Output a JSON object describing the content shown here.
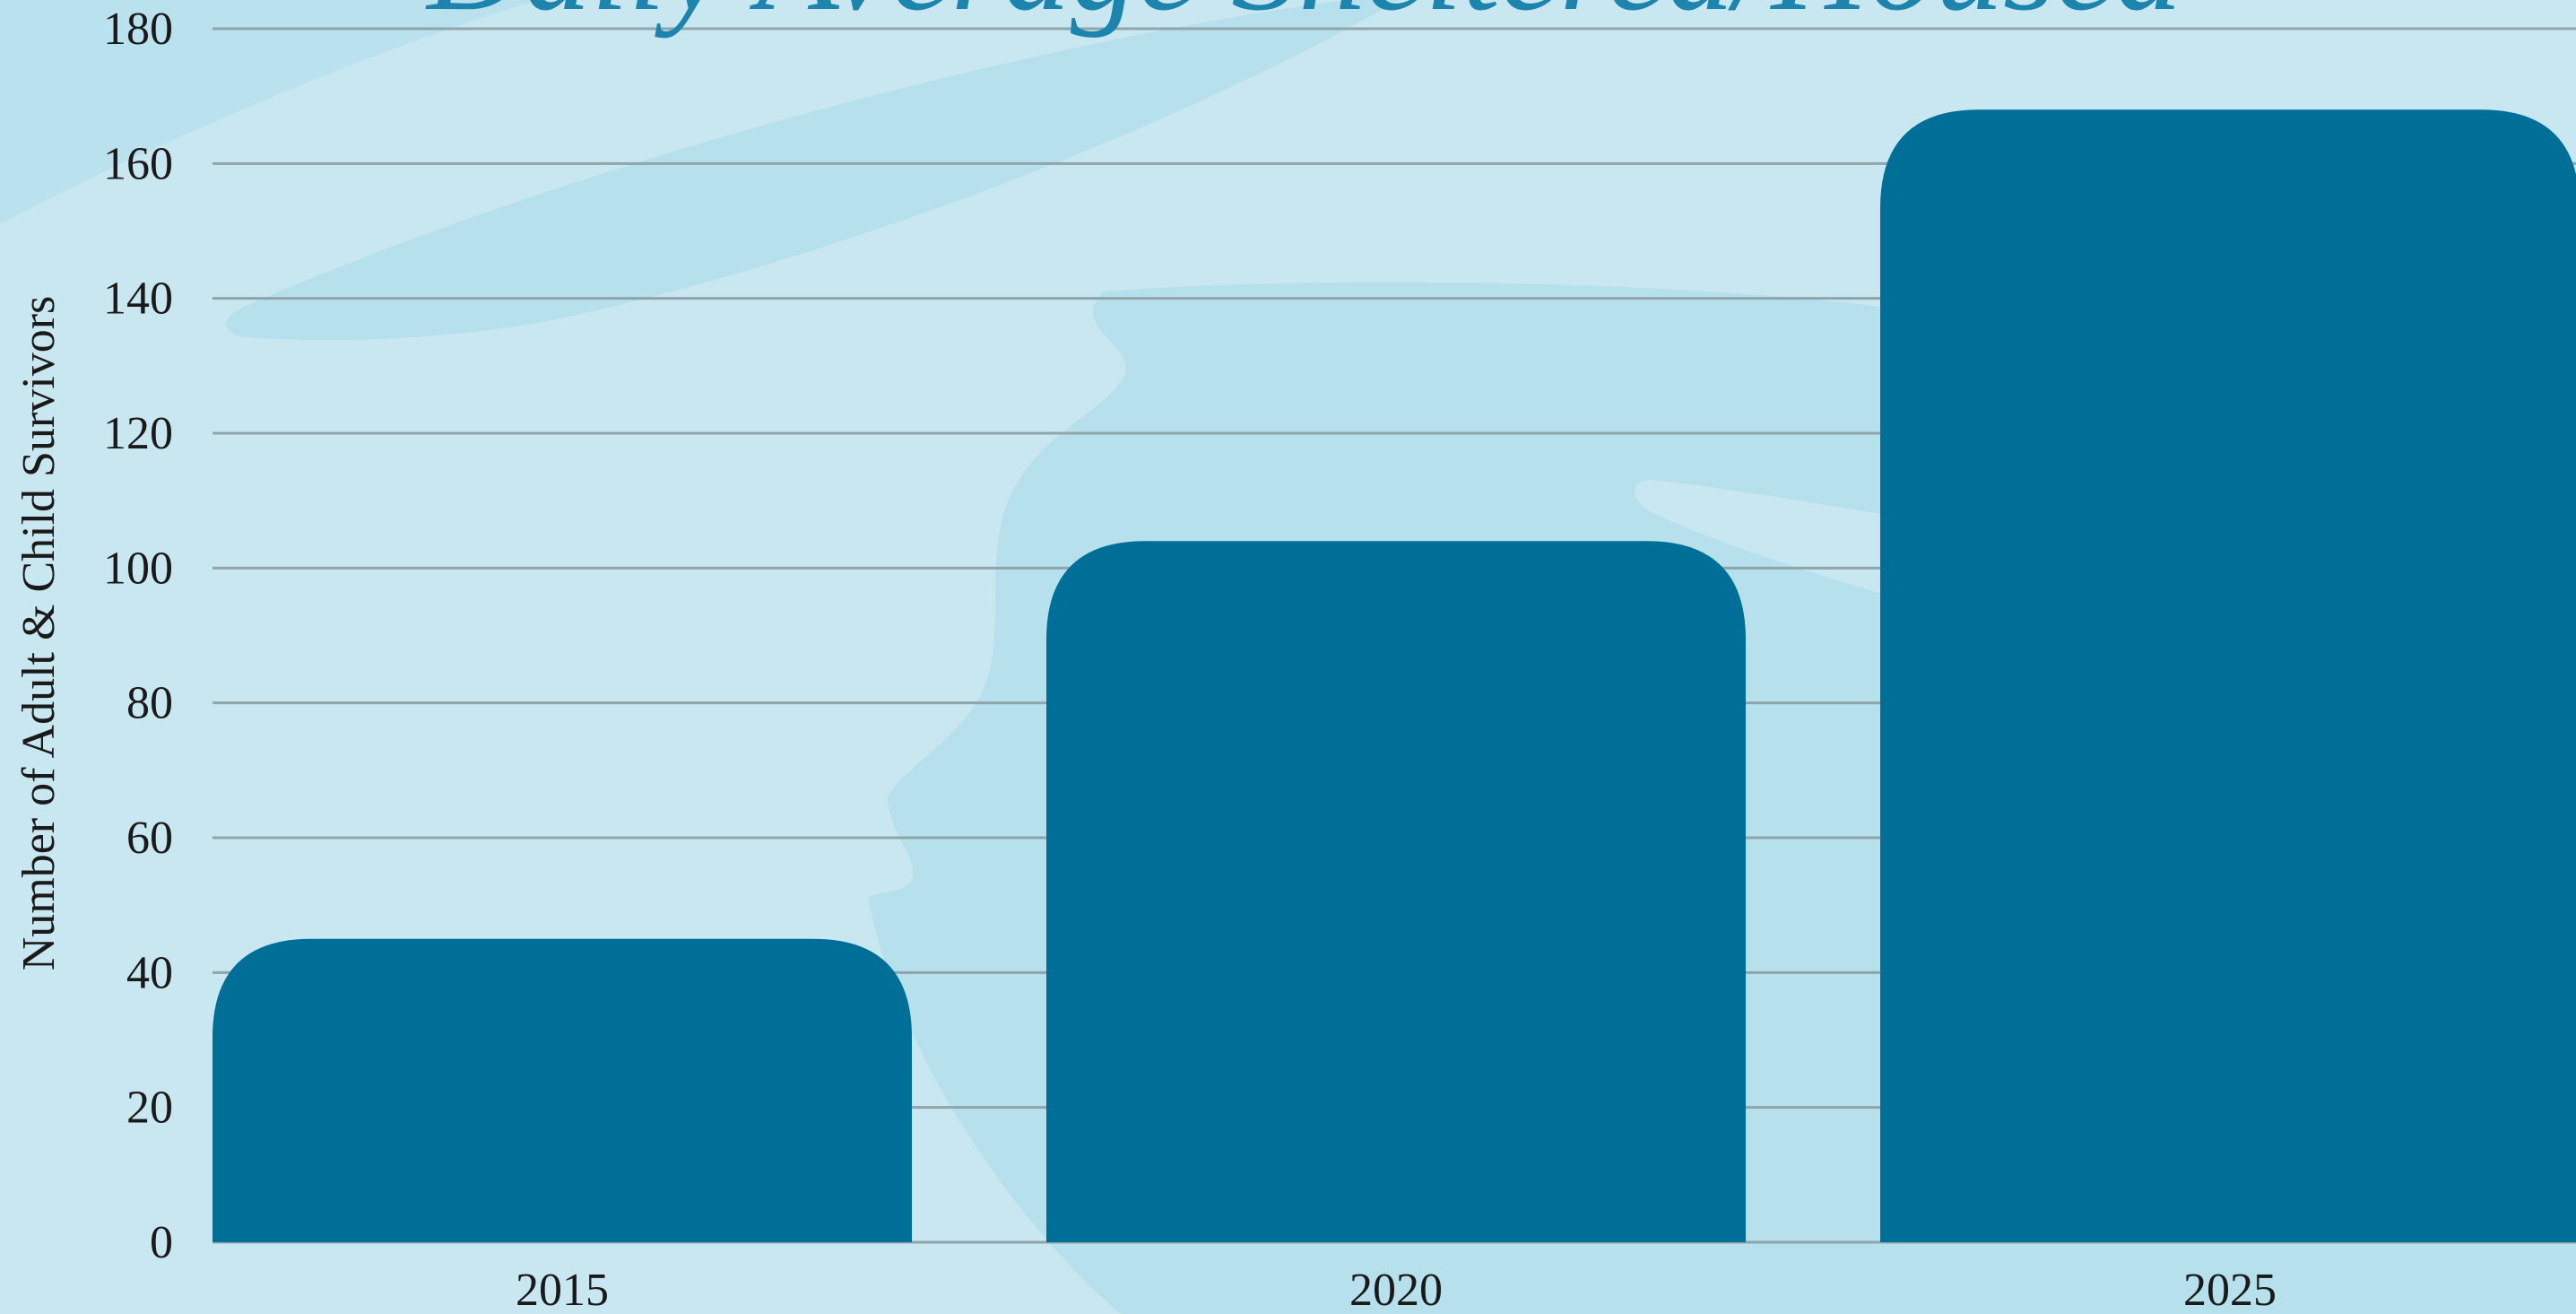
{
  "chart_data": {
    "type": "bar",
    "title": "Daily Average Sheltered/Housed",
    "xlabel": "",
    "ylabel": "Number of Adult & Child Survivors",
    "categories": [
      "2015",
      "2020",
      "2025"
    ],
    "values": [
      45,
      104,
      168
    ],
    "ylim": [
      0,
      180
    ],
    "yticks": [
      0,
      20,
      40,
      60,
      80,
      100,
      120,
      140,
      160,
      180
    ],
    "grid": true,
    "legend": "none",
    "colors": {
      "bar": "#006f97",
      "background": "#c8e7f1",
      "background_shape": "#b5e0ec",
      "gridline": "#8fa4ab",
      "title": "#1d84ad"
    }
  }
}
